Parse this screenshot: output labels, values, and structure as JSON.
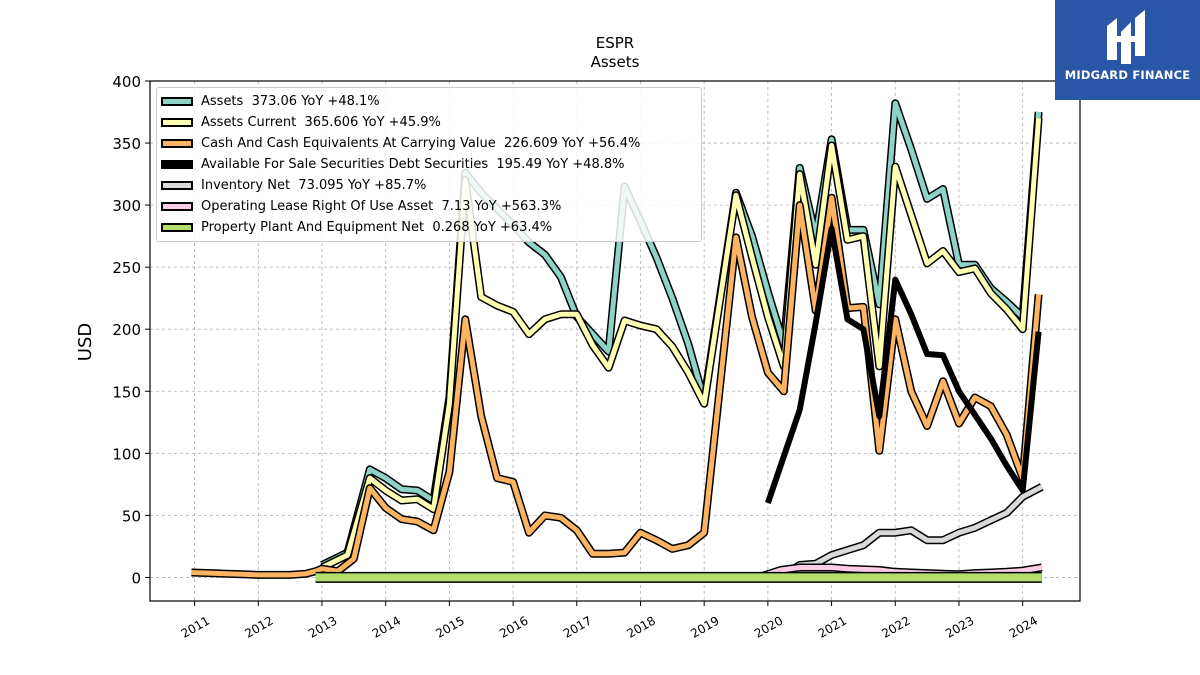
{
  "logo": {
    "text": "MIDGARD FINANCE",
    "icon": "midgard-logo-icon",
    "bg_color": "#2a56a8"
  },
  "chart_data": {
    "type": "line",
    "title": "ESPR",
    "subtitle": "Assets",
    "ylabel": "USD",
    "xlabel": "",
    "xlim": [
      2010.3,
      2024.9
    ],
    "ylim": [
      -19,
      400
    ],
    "x_ticks": [
      "2011",
      "2012",
      "2013",
      "2014",
      "2015",
      "2016",
      "2017",
      "2018",
      "2019",
      "2020",
      "2021",
      "2022",
      "2023",
      "2024"
    ],
    "y_ticks": [
      "0",
      "50",
      "100",
      "150",
      "200",
      "250",
      "300",
      "350",
      "400"
    ],
    "grid": true,
    "legend_position": "top-left",
    "series": [
      {
        "name": "Assets",
        "legend": "Assets  373.06 YoY +48.1%",
        "color": "#8dd3c7",
        "width": 5,
        "points": [
          [
            2013.0,
            10
          ],
          [
            2013.4,
            20
          ],
          [
            2013.75,
            87
          ],
          [
            2014.0,
            80
          ],
          [
            2014.25,
            71
          ],
          [
            2014.5,
            70
          ],
          [
            2014.75,
            62
          ],
          [
            2015.0,
            145
          ],
          [
            2015.25,
            326
          ],
          [
            2015.5,
            310
          ],
          [
            2016.0,
            284
          ],
          [
            2016.25,
            270
          ],
          [
            2016.5,
            260
          ],
          [
            2016.75,
            242
          ],
          [
            2017.0,
            210
          ],
          [
            2017.5,
            182
          ],
          [
            2017.75,
            315
          ],
          [
            2018.0,
            287
          ],
          [
            2018.25,
            258
          ],
          [
            2018.5,
            225
          ],
          [
            2018.75,
            188
          ],
          [
            2019.0,
            143
          ],
          [
            2019.5,
            310
          ],
          [
            2019.75,
            275
          ],
          [
            2020.0,
            230
          ],
          [
            2020.25,
            188
          ],
          [
            2020.5,
            330
          ],
          [
            2020.75,
            275
          ],
          [
            2021.0,
            353
          ],
          [
            2021.25,
            280
          ],
          [
            2021.5,
            280
          ],
          [
            2021.75,
            220
          ],
          [
            2022.0,
            382
          ],
          [
            2022.25,
            345
          ],
          [
            2022.5,
            305
          ],
          [
            2022.75,
            313
          ],
          [
            2023.0,
            252
          ],
          [
            2023.25,
            252
          ],
          [
            2023.5,
            233
          ],
          [
            2023.75,
            222
          ],
          [
            2024.0,
            210
          ],
          [
            2024.25,
            375
          ]
        ]
      },
      {
        "name": "Assets Current",
        "legend": "Assets Current  365.606 YoY +45.9%",
        "color": "#ffffb3",
        "width": 5,
        "points": [
          [
            2013.0,
            8
          ],
          [
            2013.4,
            18
          ],
          [
            2013.75,
            80
          ],
          [
            2014.0,
            70
          ],
          [
            2014.25,
            62
          ],
          [
            2014.5,
            63
          ],
          [
            2014.75,
            55
          ],
          [
            2015.0,
            140
          ],
          [
            2015.25,
            320
          ],
          [
            2015.5,
            226
          ],
          [
            2015.75,
            219
          ],
          [
            2016.0,
            214
          ],
          [
            2016.25,
            196
          ],
          [
            2016.5,
            208
          ],
          [
            2016.75,
            212
          ],
          [
            2017.0,
            212
          ],
          [
            2017.25,
            187
          ],
          [
            2017.5,
            169
          ],
          [
            2017.75,
            207
          ],
          [
            2018.0,
            203
          ],
          [
            2018.25,
            200
          ],
          [
            2018.5,
            186
          ],
          [
            2018.75,
            165
          ],
          [
            2019.0,
            140
          ],
          [
            2019.5,
            308
          ],
          [
            2019.75,
            258
          ],
          [
            2020.0,
            210
          ],
          [
            2020.25,
            170
          ],
          [
            2020.5,
            325
          ],
          [
            2020.75,
            252
          ],
          [
            2021.0,
            348
          ],
          [
            2021.25,
            272
          ],
          [
            2021.5,
            275
          ],
          [
            2021.75,
            170
          ],
          [
            2022.0,
            331
          ],
          [
            2022.25,
            292
          ],
          [
            2022.5,
            253
          ],
          [
            2022.75,
            263
          ],
          [
            2023.0,
            246
          ],
          [
            2023.25,
            249
          ],
          [
            2023.5,
            229
          ],
          [
            2023.75,
            216
          ],
          [
            2024.0,
            200
          ],
          [
            2024.25,
            370
          ]
        ]
      },
      {
        "name": "Cash And Cash Equivalents At Carrying Value",
        "legend": "Cash And Cash Equivalents At Carrying Value  226.609 YoY +56.4%",
        "color": "#fdb462",
        "width": 5,
        "points": [
          [
            2010.95,
            4
          ],
          [
            2011.25,
            3.5
          ],
          [
            2011.5,
            3
          ],
          [
            2011.75,
            2.5
          ],
          [
            2012.0,
            2
          ],
          [
            2012.25,
            2
          ],
          [
            2012.5,
            2
          ],
          [
            2012.75,
            3
          ],
          [
            2012.9,
            5
          ],
          [
            2013.0,
            7
          ],
          [
            2013.25,
            5
          ],
          [
            2013.5,
            15
          ],
          [
            2013.75,
            72
          ],
          [
            2014.0,
            56
          ],
          [
            2014.25,
            47
          ],
          [
            2014.5,
            45
          ],
          [
            2014.75,
            38
          ],
          [
            2015.0,
            85
          ],
          [
            2015.25,
            208
          ],
          [
            2015.5,
            130
          ],
          [
            2015.75,
            80
          ],
          [
            2016.0,
            77
          ],
          [
            2016.25,
            36
          ],
          [
            2016.5,
            50
          ],
          [
            2016.75,
            48
          ],
          [
            2017.0,
            38
          ],
          [
            2017.25,
            19
          ],
          [
            2017.5,
            19
          ],
          [
            2017.75,
            20
          ],
          [
            2018.0,
            36
          ],
          [
            2018.25,
            30
          ],
          [
            2018.5,
            23
          ],
          [
            2018.75,
            26
          ],
          [
            2019.0,
            36
          ],
          [
            2019.5,
            274
          ],
          [
            2019.75,
            210
          ],
          [
            2020.0,
            165
          ],
          [
            2020.25,
            150
          ],
          [
            2020.5,
            300
          ],
          [
            2020.75,
            215
          ],
          [
            2021.0,
            306
          ],
          [
            2021.25,
            217
          ],
          [
            2021.5,
            218
          ],
          [
            2021.75,
            102
          ],
          [
            2022.0,
            208
          ],
          [
            2022.25,
            150
          ],
          [
            2022.5,
            122
          ],
          [
            2022.75,
            158
          ],
          [
            2023.0,
            124
          ],
          [
            2023.25,
            145
          ],
          [
            2023.5,
            138
          ],
          [
            2023.75,
            115
          ],
          [
            2024.0,
            80
          ],
          [
            2024.25,
            228
          ]
        ]
      },
      {
        "name": "Available For Sale Securities Debt Securities",
        "legend": "Available For Sale Securities Debt Securities  195.49 YoY +48.8%",
        "color": "#000000",
        "width": 6,
        "points": [
          [
            2020.0,
            60
          ],
          [
            2020.5,
            135
          ],
          [
            2020.75,
            205
          ],
          [
            2021.0,
            281
          ],
          [
            2021.25,
            208
          ],
          [
            2021.5,
            200
          ],
          [
            2021.75,
            130
          ],
          [
            2022.0,
            240
          ],
          [
            2022.25,
            212
          ],
          [
            2022.5,
            180
          ],
          [
            2022.75,
            179
          ],
          [
            2023.0,
            150
          ],
          [
            2023.25,
            131
          ],
          [
            2023.5,
            112
          ],
          [
            2023.75,
            90
          ],
          [
            2024.0,
            70
          ],
          [
            2024.25,
            198
          ]
        ]
      },
      {
        "name": "Inventory Net",
        "legend": "Inventory Net  73.095 YoY +85.7%",
        "color": "#d9d9d9",
        "width": 5,
        "points": [
          [
            2019.9,
            1
          ],
          [
            2020.25,
            2
          ],
          [
            2020.5,
            10
          ],
          [
            2020.75,
            11
          ],
          [
            2021.0,
            18
          ],
          [
            2021.25,
            22
          ],
          [
            2021.5,
            26
          ],
          [
            2021.75,
            36
          ],
          [
            2022.0,
            36
          ],
          [
            2022.25,
            38
          ],
          [
            2022.5,
            30
          ],
          [
            2022.75,
            30
          ],
          [
            2023.0,
            36
          ],
          [
            2023.25,
            40
          ],
          [
            2023.5,
            46
          ],
          [
            2023.75,
            52
          ],
          [
            2024.0,
            65
          ],
          [
            2024.3,
            73
          ]
        ]
      },
      {
        "name": "Operating Lease Right Of Use Asset",
        "legend": "Operating Lease Right Of Use Asset  7.13 YoY +563.3%",
        "color": "#fccde5",
        "width": 5,
        "points": [
          [
            2019.9,
            1
          ],
          [
            2020.2,
            6
          ],
          [
            2020.5,
            8
          ],
          [
            2020.75,
            8
          ],
          [
            2021.0,
            8
          ],
          [
            2021.25,
            7
          ],
          [
            2021.5,
            6.5
          ],
          [
            2021.75,
            6
          ],
          [
            2022.0,
            4.5
          ],
          [
            2022.25,
            4
          ],
          [
            2022.5,
            3.5
          ],
          [
            2022.75,
            3
          ],
          [
            2023.0,
            2.5
          ],
          [
            2023.25,
            3.5
          ],
          [
            2023.5,
            4
          ],
          [
            2023.75,
            4.5
          ],
          [
            2024.0,
            5.5
          ],
          [
            2024.3,
            8
          ]
        ]
      },
      {
        "name": "Property Plant And Equipment Net",
        "legend": "Property Plant And Equipment Net  0.268 YoY +63.4%",
        "color": "#b3de69",
        "width": 8,
        "points": [
          [
            2012.9,
            0
          ],
          [
            2024.3,
            0
          ]
        ]
      }
    ]
  }
}
